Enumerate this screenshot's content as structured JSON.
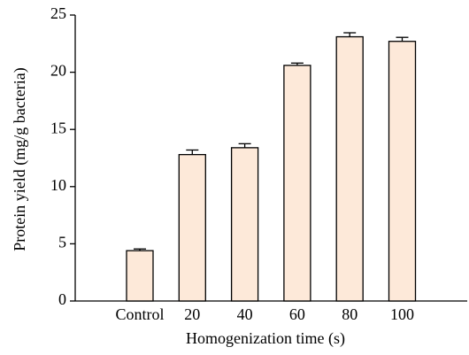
{
  "chart_data": {
    "type": "bar",
    "x_label": "Homogenization time (s)",
    "y_label": "Protein yield (mg/g bacteria)",
    "categories": [
      "Control",
      "20",
      "40",
      "60",
      "80",
      "100"
    ],
    "values": [
      4.4,
      12.8,
      13.4,
      20.6,
      23.1,
      22.7
    ],
    "errors": [
      0.15,
      0.4,
      0.35,
      0.2,
      0.35,
      0.35
    ],
    "color": "#fde9d9",
    "ylim": [
      0,
      25
    ],
    "yticks": [
      0,
      5,
      10,
      15,
      20,
      25
    ]
  }
}
